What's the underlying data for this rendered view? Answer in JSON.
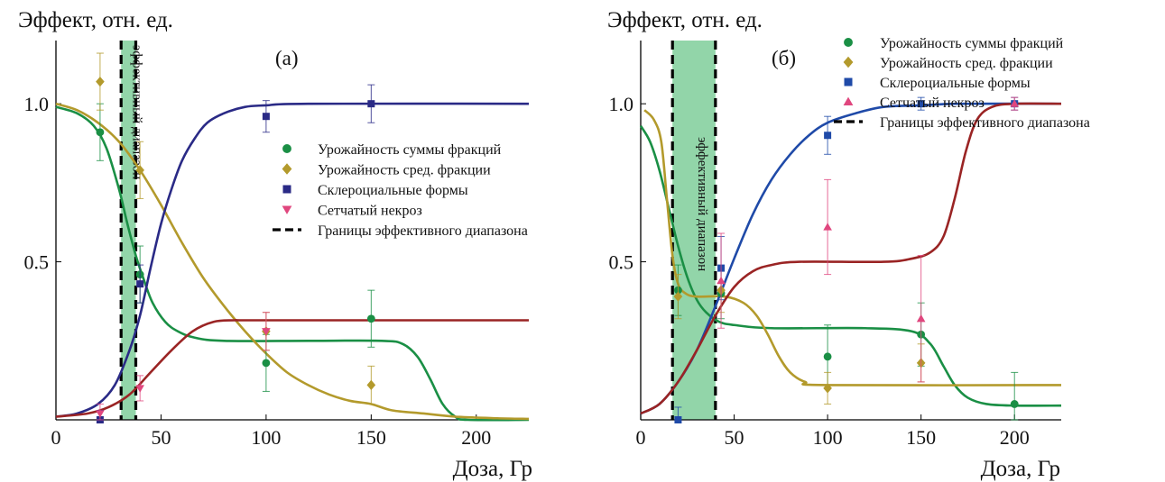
{
  "charts": [
    {
      "id": "a",
      "type": "line",
      "panel_label": "(а)",
      "ylabel": "Эффект, отн. ед.",
      "xlabel": "Доза, Гр",
      "xlim": [
        0,
        225
      ],
      "ylim": [
        0,
        1.2
      ],
      "xticks": [
        0,
        50,
        100,
        150,
        200
      ],
      "xtick_labels": [
        "0",
        "50",
        "100",
        "150",
        "200"
      ],
      "yticks": [
        0.5,
        1.0
      ],
      "ytick_labels": [
        "0.5",
        "1.0"
      ],
      "band": {
        "x0": 31,
        "x1": 38,
        "label": "эффективный диапазон"
      },
      "legend_position": "center-right",
      "legend": [
        {
          "label": "Урожайность суммы фракций",
          "marker": "circle",
          "color": "#1a8f45"
        },
        {
          "label": "Урожайность сред. фракции",
          "marker": "diamond",
          "color": "#b39a2c"
        },
        {
          "label": "Склероциальные формы",
          "marker": "square",
          "color": "#2a2a86"
        },
        {
          "label": "Сетчатый некроз",
          "marker": "triangle-down",
          "color": "#e0467e"
        },
        {
          "label": "Границы эффективного диапазона",
          "marker": "dash",
          "color": "#000000"
        }
      ],
      "series": [
        {
          "name": "Урожайность суммы фракций",
          "color": "#1a8f45",
          "marker": "circle",
          "points": [
            {
              "x": 21,
              "y": 0.91,
              "err": 0.09
            },
            {
              "x": 40,
              "y": 0.46,
              "err": 0.09
            },
            {
              "x": 100,
              "y": 0.18,
              "err": 0.09
            },
            {
              "x": 150,
              "y": 0.32,
              "err": 0.09
            }
          ],
          "curve": [
            [
              0,
              0.99
            ],
            [
              10,
              0.97
            ],
            [
              18,
              0.93
            ],
            [
              24,
              0.86
            ],
            [
              30,
              0.73
            ],
            [
              34,
              0.62
            ],
            [
              38,
              0.52
            ],
            [
              42,
              0.44
            ],
            [
              46,
              0.37
            ],
            [
              52,
              0.31
            ],
            [
              58,
              0.28
            ],
            [
              66,
              0.26
            ],
            [
              80,
              0.25
            ],
            [
              120,
              0.25
            ],
            [
              155,
              0.25
            ],
            [
              165,
              0.24
            ],
            [
              172,
              0.2
            ],
            [
              178,
              0.13
            ],
            [
              184,
              0.05
            ],
            [
              190,
              0.01
            ],
            [
              196,
              0.0
            ],
            [
              225,
              0.0
            ]
          ]
        },
        {
          "name": "Урожайность сред. фракции",
          "color": "#b39a2c",
          "marker": "diamond",
          "points": [
            {
              "x": 21,
              "y": 1.07,
              "err": 0.09
            },
            {
              "x": 40,
              "y": 0.79,
              "err": 0.09
            },
            {
              "x": 100,
              "y": 0.28,
              "err": 0.06
            },
            {
              "x": 150,
              "y": 0.11,
              "err": 0.06
            }
          ],
          "curve": [
            [
              0,
              1.0
            ],
            [
              10,
              0.98
            ],
            [
              20,
              0.94
            ],
            [
              30,
              0.88
            ],
            [
              40,
              0.79
            ],
            [
              50,
              0.68
            ],
            [
              60,
              0.56
            ],
            [
              70,
              0.45
            ],
            [
              80,
              0.36
            ],
            [
              90,
              0.28
            ],
            [
              100,
              0.21
            ],
            [
              110,
              0.15
            ],
            [
              120,
              0.11
            ],
            [
              130,
              0.08
            ],
            [
              140,
              0.06
            ],
            [
              150,
              0.05
            ],
            [
              160,
              0.03
            ],
            [
              175,
              0.02
            ],
            [
              190,
              0.01
            ],
            [
              210,
              0.005
            ],
            [
              225,
              0.003
            ]
          ]
        },
        {
          "name": "Склероциальные формы",
          "color": "#2a2a86",
          "marker": "square",
          "points": [
            {
              "x": 21,
              "y": 0.0,
              "err": 0.03
            },
            {
              "x": 40,
              "y": 0.43,
              "err": 0.06
            },
            {
              "x": 100,
              "y": 0.96,
              "err": 0.05
            },
            {
              "x": 150,
              "y": 1.0,
              "err": 0.06
            }
          ],
          "curve": [
            [
              0,
              0.01
            ],
            [
              10,
              0.02
            ],
            [
              20,
              0.05
            ],
            [
              28,
              0.11
            ],
            [
              35,
              0.22
            ],
            [
              40,
              0.33
            ],
            [
              45,
              0.48
            ],
            [
              50,
              0.62
            ],
            [
              55,
              0.73
            ],
            [
              60,
              0.82
            ],
            [
              66,
              0.89
            ],
            [
              72,
              0.94
            ],
            [
              80,
              0.97
            ],
            [
              90,
              0.99
            ],
            [
              100,
              0.995
            ],
            [
              120,
              1.0
            ],
            [
              225,
              1.0
            ]
          ]
        },
        {
          "name": "Сетчатый некроз",
          "color": "#e0467e",
          "marker": "triangle-down",
          "points": [
            {
              "x": 21,
              "y": 0.02,
              "err": 0.03
            },
            {
              "x": 40,
              "y": 0.1,
              "err": 0.04
            },
            {
              "x": 100,
              "y": 0.28,
              "err": 0.06
            }
          ],
          "curve": [
            [
              0,
              0.01
            ],
            [
              15,
              0.02
            ],
            [
              25,
              0.04
            ],
            [
              35,
              0.08
            ],
            [
              45,
              0.15
            ],
            [
              55,
              0.22
            ],
            [
              65,
              0.28
            ],
            [
              75,
              0.31
            ],
            [
              85,
              0.315
            ],
            [
              100,
              0.315
            ],
            [
              225,
              0.315
            ]
          ],
          "curve_color": "#9a2424"
        }
      ]
    },
    {
      "id": "b",
      "type": "line",
      "panel_label": "(б)",
      "ylabel": "Эффект, отн. ед.",
      "xlabel": "Доза, Гр",
      "xlim": [
        0,
        225
      ],
      "ylim": [
        0,
        1.2
      ],
      "xticks": [
        0,
        50,
        100,
        150,
        200
      ],
      "xtick_labels": [
        "0",
        "50",
        "100",
        "150",
        "200"
      ],
      "yticks": [
        0.5,
        1.0
      ],
      "ytick_labels": [
        "0.5",
        "1.0"
      ],
      "band": {
        "x0": 17,
        "x1": 40,
        "label": "эффективный диапазон"
      },
      "legend_position": "top-right",
      "legend": [
        {
          "label": "Урожайность суммы фракций",
          "marker": "circle",
          "color": "#1a8f45"
        },
        {
          "label": "Урожайность сред. фракции",
          "marker": "diamond",
          "color": "#b39a2c"
        },
        {
          "label": "Склероциальные формы",
          "marker": "square",
          "color": "#1f4aa8"
        },
        {
          "label": "Сетчатый некроз",
          "marker": "triangle-up",
          "color": "#e0467e"
        },
        {
          "label": "Границы эффективного диапазона",
          "marker": "dash",
          "color": "#000000"
        }
      ],
      "series": [
        {
          "name": "Урожайность суммы фракций",
          "color": "#1a8f45",
          "marker": "circle",
          "points": [
            {
              "x": 20,
              "y": 0.41,
              "err": 0.08
            },
            {
              "x": 43,
              "y": 0.4,
              "err": 0.08
            },
            {
              "x": 100,
              "y": 0.2,
              "err": 0.1
            },
            {
              "x": 150,
              "y": 0.27,
              "err": 0.1
            },
            {
              "x": 200,
              "y": 0.05,
              "err": 0.1
            }
          ],
          "curve": [
            [
              0,
              0.93
            ],
            [
              5,
              0.88
            ],
            [
              10,
              0.79
            ],
            [
              15,
              0.67
            ],
            [
              20,
              0.55
            ],
            [
              25,
              0.45
            ],
            [
              30,
              0.38
            ],
            [
              35,
              0.34
            ],
            [
              42,
              0.31
            ],
            [
              50,
              0.3
            ],
            [
              70,
              0.29
            ],
            [
              120,
              0.29
            ],
            [
              145,
              0.28
            ],
            [
              155,
              0.24
            ],
            [
              162,
              0.17
            ],
            [
              168,
              0.11
            ],
            [
              175,
              0.07
            ],
            [
              185,
              0.05
            ],
            [
              200,
              0.045
            ],
            [
              225,
              0.045
            ]
          ]
        },
        {
          "name": "Урожайность сред. фракции",
          "color": "#b39a2c",
          "marker": "diamond",
          "points": [
            {
              "x": 20,
              "y": 0.39,
              "err": 0.07
            },
            {
              "x": 43,
              "y": 0.41,
              "err": 0.07
            },
            {
              "x": 100,
              "y": 0.1,
              "err": 0.05
            },
            {
              "x": 150,
              "y": 0.18,
              "err": 0.06
            }
          ],
          "curve": [
            [
              2,
              0.98
            ],
            [
              7,
              0.95
            ],
            [
              11,
              0.88
            ],
            [
              14,
              0.7
            ],
            [
              17,
              0.52
            ],
            [
              20,
              0.43
            ],
            [
              24,
              0.4
            ],
            [
              30,
              0.39
            ],
            [
              45,
              0.39
            ],
            [
              55,
              0.37
            ],
            [
              62,
              0.33
            ],
            [
              68,
              0.27
            ],
            [
              74,
              0.2
            ],
            [
              80,
              0.15
            ],
            [
              88,
              0.12
            ],
            [
              100,
              0.11
            ],
            [
              225,
              0.11
            ]
          ]
        },
        {
          "name": "Склероциальные формы",
          "color": "#1f4aa8",
          "marker": "square",
          "points": [
            {
              "x": 20,
              "y": 0.0,
              "err": 0.04
            },
            {
              "x": 43,
              "y": 0.48,
              "err": 0.1
            },
            {
              "x": 100,
              "y": 0.9,
              "err": 0.06
            },
            {
              "x": 150,
              "y": 1.0,
              "err": 0.02
            },
            {
              "x": 200,
              "y": 1.0,
              "err": 0.02
            }
          ],
          "curve": [
            [
              0,
              0.02
            ],
            [
              10,
              0.05
            ],
            [
              20,
              0.12
            ],
            [
              30,
              0.22
            ],
            [
              40,
              0.36
            ],
            [
              50,
              0.51
            ],
            [
              60,
              0.65
            ],
            [
              70,
              0.76
            ],
            [
              80,
              0.84
            ],
            [
              90,
              0.9
            ],
            [
              100,
              0.94
            ],
            [
              115,
              0.97
            ],
            [
              130,
              0.99
            ],
            [
              150,
              0.995
            ],
            [
              170,
              1.0
            ],
            [
              225,
              1.0
            ]
          ]
        },
        {
          "name": "Сетчатый некроз",
          "color": "#e0467e",
          "marker": "triangle-up",
          "points": [
            {
              "x": 43,
              "y": 0.44,
              "err": 0.15
            },
            {
              "x": 100,
              "y": 0.61,
              "err": 0.15
            },
            {
              "x": 150,
              "y": 0.32,
              "err": 0.2
            },
            {
              "x": 200,
              "y": 1.0,
              "err": 0.02
            }
          ],
          "curve": [
            [
              0,
              0.02
            ],
            [
              10,
              0.05
            ],
            [
              20,
              0.12
            ],
            [
              30,
              0.22
            ],
            [
              40,
              0.33
            ],
            [
              50,
              0.42
            ],
            [
              60,
              0.47
            ],
            [
              70,
              0.49
            ],
            [
              85,
              0.5
            ],
            [
              130,
              0.5
            ],
            [
              145,
              0.51
            ],
            [
              155,
              0.53
            ],
            [
              162,
              0.58
            ],
            [
              168,
              0.7
            ],
            [
              174,
              0.85
            ],
            [
              180,
              0.95
            ],
            [
              188,
              0.99
            ],
            [
              200,
              1.0
            ],
            [
              225,
              1.0
            ]
          ],
          "curve_color": "#9a2424"
        }
      ]
    }
  ]
}
